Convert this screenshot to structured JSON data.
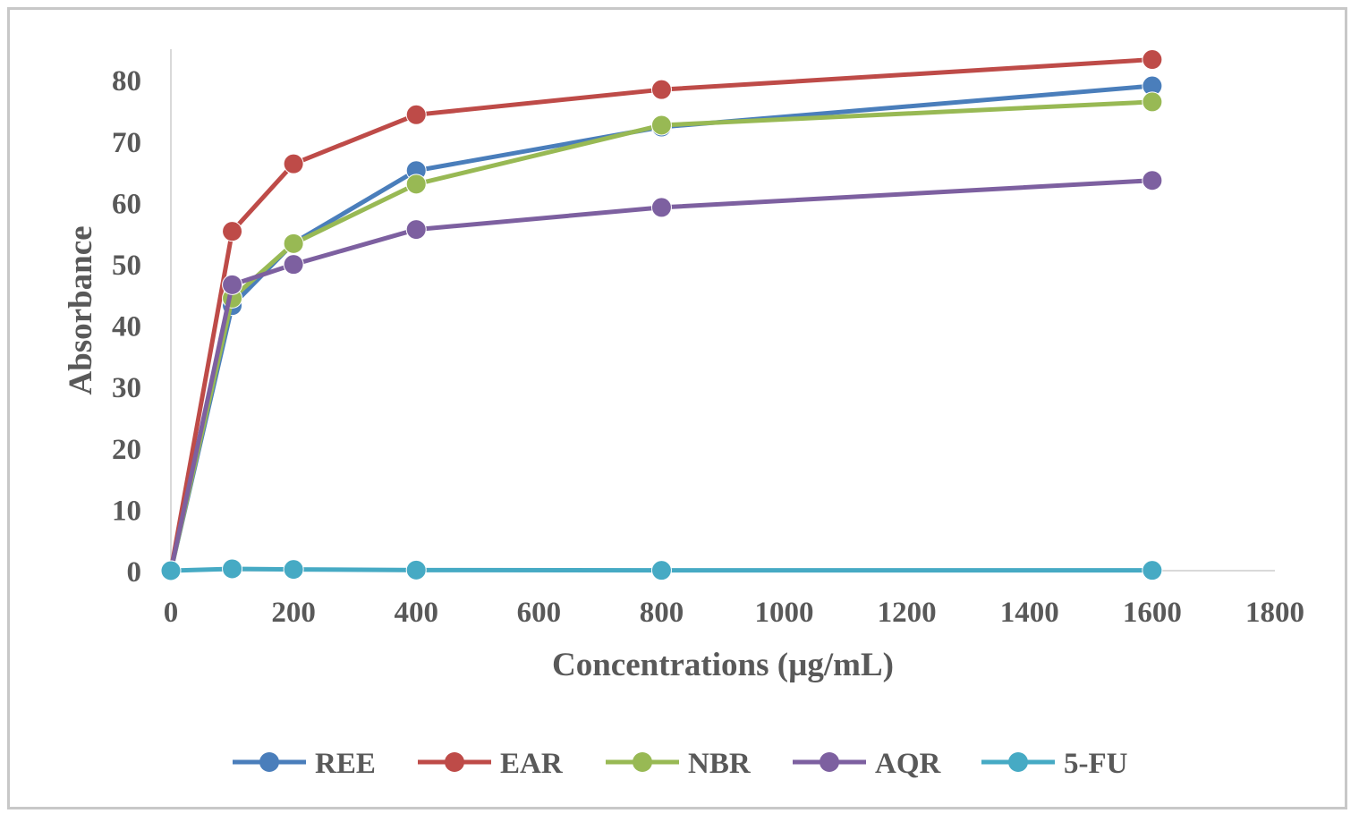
{
  "chart_data": {
    "type": "line",
    "title": "",
    "xlabel": "Concentrations (µg/mL)",
    "ylabel": "Absorbance",
    "xlim": [
      0,
      1800
    ],
    "ylim": [
      0,
      85
    ],
    "x_ticks": [
      "0",
      "200",
      "400",
      "600",
      "800",
      "1000",
      "1200",
      "1400",
      "1600",
      "1800"
    ],
    "y_ticks": [
      "0",
      "10",
      "20",
      "30",
      "40",
      "50",
      "60",
      "70",
      "80"
    ],
    "x": [
      0,
      100,
      200,
      400,
      800,
      1600
    ],
    "series": [
      {
        "name": "REE",
        "color": "#4a7ebb",
        "values": [
          0,
          43.2,
          53.4,
          65.2,
          72.3,
          79.0
        ]
      },
      {
        "name": "EAR",
        "color": "#be4b48",
        "values": [
          0,
          55.3,
          66.3,
          74.3,
          78.4,
          83.3
        ]
      },
      {
        "name": "NBR",
        "color": "#98b954",
        "values": [
          0,
          44.4,
          53.3,
          63.0,
          72.6,
          76.4
        ]
      },
      {
        "name": "AQR",
        "color": "#7d60a0",
        "values": [
          0,
          46.6,
          49.9,
          55.6,
          59.2,
          63.6
        ]
      },
      {
        "name": "5-FU",
        "color": "#46aac4",
        "values": [
          0,
          0.3,
          0.2,
          0.1,
          0.05,
          0.05
        ]
      }
    ],
    "legend_position": "bottom",
    "grid": false
  }
}
